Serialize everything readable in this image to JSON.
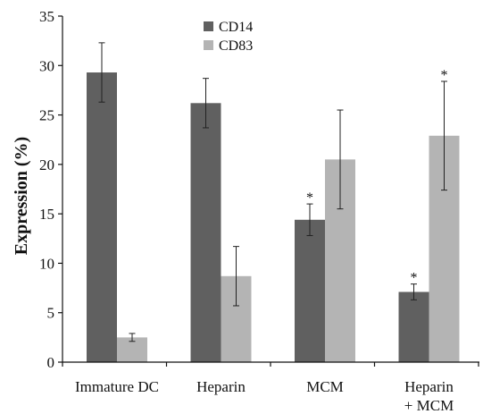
{
  "chart_data": {
    "type": "bar",
    "ylabel": "Expression (%)",
    "ylim": [
      0,
      35
    ],
    "yticks": [
      0,
      5,
      10,
      15,
      20,
      25,
      30,
      35
    ],
    "grid": false,
    "legend_position": "top-center",
    "categories": [
      [
        "Immature DC"
      ],
      [
        "Heparin"
      ],
      [
        "MCM"
      ],
      [
        "Heparin",
        "+ MCM"
      ]
    ],
    "series": [
      {
        "name": "CD14",
        "color": "#606060",
        "values": [
          29.3,
          26.2,
          14.4,
          7.1
        ],
        "errors": [
          3.0,
          2.5,
          1.6,
          0.8
        ],
        "significance": [
          "",
          "",
          "*",
          "*"
        ]
      },
      {
        "name": "CD83",
        "color": "#b4b4b4",
        "values": [
          2.5,
          8.7,
          20.5,
          22.9
        ],
        "errors": [
          0.4,
          3.0,
          5.0,
          5.5
        ],
        "significance": [
          "",
          "",
          "",
          "*"
        ]
      }
    ]
  }
}
